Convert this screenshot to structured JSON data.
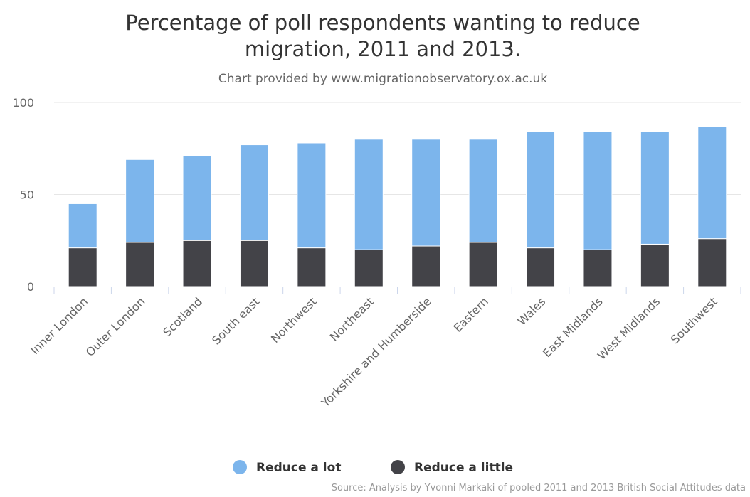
{
  "chart_data": {
    "type": "bar",
    "stacked": true,
    "title": "Percentage of poll respondents wanting to reduce migration, 2011 and 2013.",
    "title_lines": [
      "Percentage of poll respondents wanting to reduce",
      "migration, 2011 and 2013."
    ],
    "subtitle": "Chart provided by www.migrationobservatory.ox.ac.uk",
    "categories": [
      "Inner London",
      "Outer London",
      "Scotland",
      "South east",
      "Northwest",
      "Northeast",
      "Yorkshire and Humberside",
      "Eastern",
      "Wales",
      "East Midlands",
      "West Midlands",
      "Southwest"
    ],
    "series": [
      {
        "name": "Reduce a lot",
        "color": "#7cb5ec",
        "values": [
          24,
          45,
          46,
          52,
          57,
          60,
          58,
          56,
          63,
          64,
          61,
          61
        ]
      },
      {
        "name": "Reduce a little",
        "color": "#434348",
        "values": [
          21,
          24,
          25,
          25,
          21,
          20,
          22,
          24,
          21,
          20,
          23,
          26
        ]
      }
    ],
    "ylim": [
      0,
      100
    ],
    "yticks": [
      0,
      50,
      100
    ],
    "grid": true,
    "legend_position": "bottom-center",
    "credits": "Source: Analysis by Yvonni Markaki of pooled 2011 and 2013 British Social Attitudes data"
  }
}
